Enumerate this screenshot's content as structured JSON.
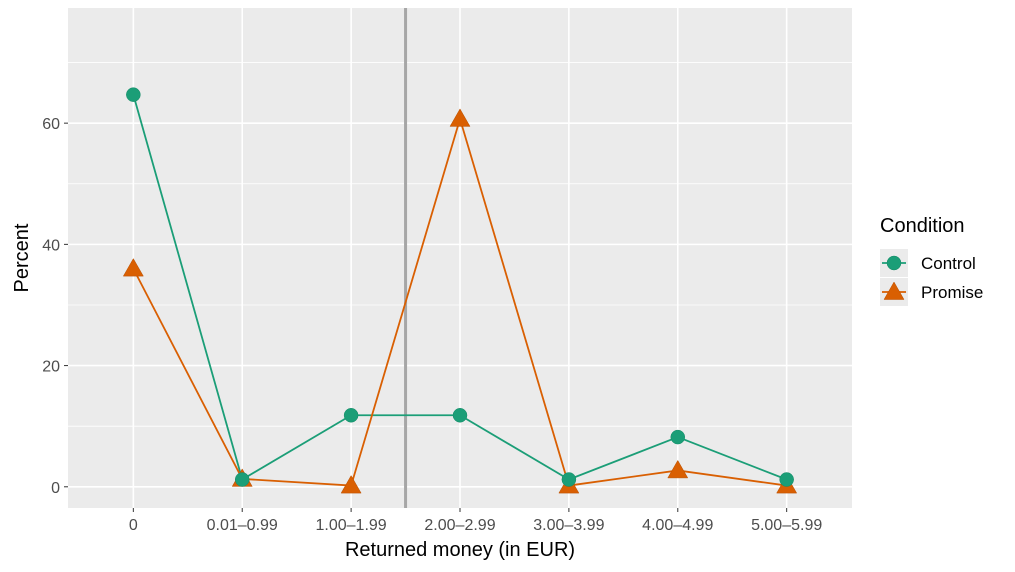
{
  "chart_data": {
    "type": "line",
    "categories": [
      "0",
      "0.01–0.99",
      "1.00–1.99",
      "2.00–2.99",
      "3.00–3.99",
      "4.00–4.99",
      "5.00–5.99"
    ],
    "series": [
      {
        "name": "Control",
        "values": [
          64.7,
          1.2,
          11.8,
          11.8,
          1.2,
          8.2,
          1.2
        ],
        "color": "#1b9e77",
        "marker": "circle"
      },
      {
        "name": "Promise",
        "values": [
          36.0,
          1.3,
          0.2,
          60.7,
          0.2,
          2.7,
          0.2
        ],
        "color": "#d95f02",
        "marker": "triangle"
      }
    ],
    "xlabel": "Returned money (in EUR)",
    "ylabel": "Percent",
    "ylim": [
      -3.5,
      79
    ],
    "yticks": [
      0,
      20,
      40,
      60
    ],
    "reference_line_between": [
      "1.00–1.99",
      "2.00–2.99"
    ],
    "reference_line_color": "#a6a6a6",
    "panel_background": "#ebebeb",
    "grid": true,
    "legend": {
      "title": "Condition",
      "placement": "right"
    }
  }
}
